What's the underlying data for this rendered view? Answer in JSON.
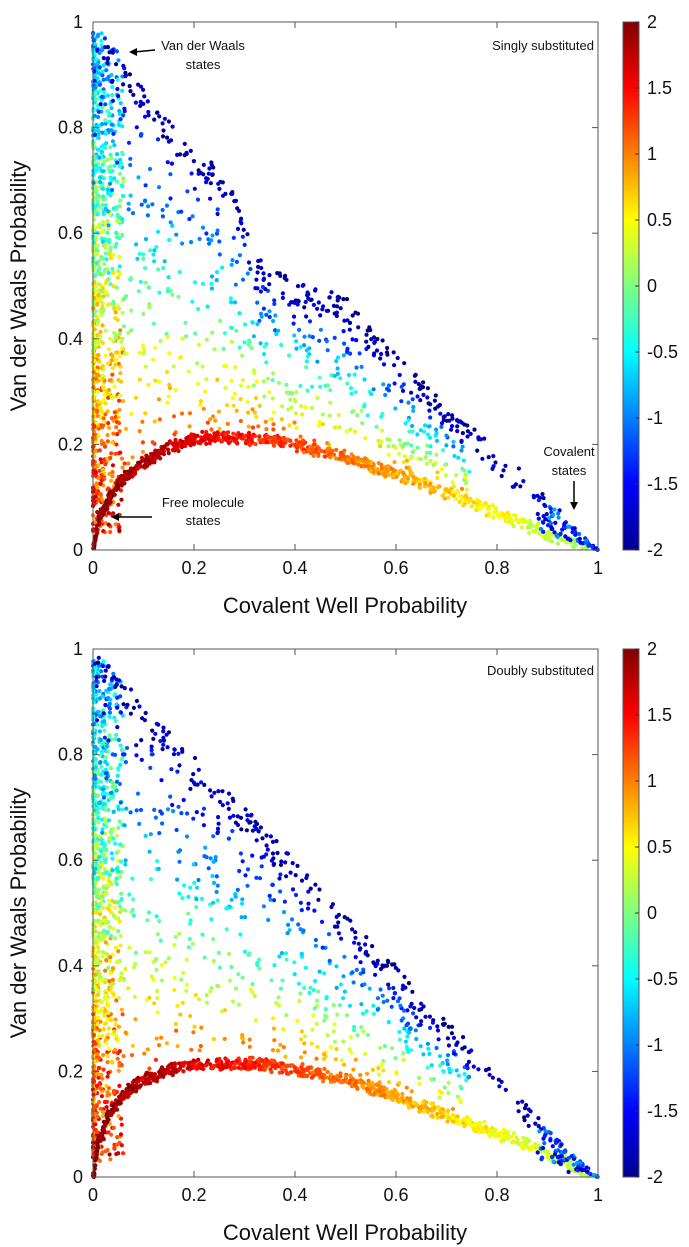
{
  "chart_data": [
    {
      "type": "scatter",
      "title": "",
      "panel_label": "Singly substituted",
      "xlabel": "Covalent Well Probability",
      "ylabel": "Van der Waals Probability",
      "xlim": [
        0,
        1
      ],
      "ylim": [
        0,
        1
      ],
      "xticks": [
        0,
        0.2,
        0.4,
        0.6,
        0.8,
        1
      ],
      "xtick_labels": [
        "0",
        "0.2",
        "0.4",
        "0.6",
        "0.8",
        "1"
      ],
      "yticks": [
        0,
        0.2,
        0.4,
        0.6,
        0.8,
        1
      ],
      "ytick_labels": [
        "0",
        "0.2",
        "0.4",
        "0.6",
        "0.8",
        "1"
      ],
      "grid": false,
      "colormap": "jet",
      "colorbar": {
        "range": [
          -2,
          2
        ],
        "ticks": [
          2,
          1.5,
          1,
          0.5,
          0,
          -0.5,
          -1,
          -1.5,
          -2
        ],
        "tick_labels": [
          "2",
          "1.5",
          "1",
          "0.5",
          "0",
          "-0.5",
          "-1",
          "-1.5",
          "-2"
        ]
      },
      "features": {
        "ridge_curve": [
          [
            0,
            0
          ],
          [
            0.01,
            0.06
          ],
          [
            0.03,
            0.1
          ],
          [
            0.06,
            0.14
          ],
          [
            0.1,
            0.17
          ],
          [
            0.15,
            0.2
          ],
          [
            0.2,
            0.215
          ],
          [
            0.26,
            0.22
          ],
          [
            0.33,
            0.215
          ],
          [
            0.4,
            0.205
          ],
          [
            0.5,
            0.18
          ],
          [
            0.6,
            0.15
          ],
          [
            0.7,
            0.115
          ],
          [
            0.8,
            0.075
          ],
          [
            0.9,
            0.035
          ],
          [
            1,
            0
          ]
        ],
        "upper_boundary_points": [
          [
            0,
            1
          ],
          [
            0.02,
            0.98
          ],
          [
            0.05,
            0.95
          ],
          [
            0.08,
            0.9
          ],
          [
            0.12,
            0.85
          ],
          [
            0.16,
            0.8
          ],
          [
            0.2,
            0.76
          ],
          [
            0.27,
            0.72
          ],
          [
            0.33,
            0.55
          ],
          [
            0.38,
            0.52
          ],
          [
            0.43,
            0.5
          ],
          [
            0.49,
            0.49
          ],
          [
            0.6,
            0.37
          ],
          [
            0.63,
            0.34
          ],
          [
            0.73,
            0.25
          ],
          [
            0.8,
            0.19
          ],
          [
            0.84,
            0.16
          ],
          [
            0.9,
            0.1
          ]
        ],
        "series_color_trend": [
          {
            "region": "ridge curve near origin",
            "value": 2
          },
          {
            "region": "ridge curve x 0.3-0.55",
            "value": 1.2
          },
          {
            "region": "ridge curve x 0.6-0.8",
            "value": 0.5
          },
          {
            "region": "near y axis, y 0.2-0.6",
            "value": 0.7
          },
          {
            "region": "near y axis, y 0.7-1",
            "value": -0.3
          },
          {
            "region": "upper boundary",
            "value": -1.8
          },
          {
            "region": "covalent corner",
            "value": -1
          }
        ]
      },
      "annotations": [
        {
          "text_lines": [
            "Van der Waals",
            "states"
          ],
          "points_to": [
            0.06,
            0.97
          ],
          "text_at": [
            0.22,
            0.95
          ]
        },
        {
          "text_lines": [
            "Free molecule",
            "states"
          ],
          "points_to": [
            0.035,
            0.06
          ],
          "text_at": [
            0.22,
            0.07
          ]
        },
        {
          "text_lines": [
            "Covalent",
            "states"
          ],
          "points_to": [
            0.955,
            0.065
          ],
          "text_at": [
            0.955,
            0.17
          ]
        }
      ]
    },
    {
      "type": "scatter",
      "title": "",
      "panel_label": "Doubly substituted",
      "xlabel": "Covalent Well Probability",
      "ylabel": "Van der Waals Probability",
      "xlim": [
        0,
        1
      ],
      "ylim": [
        0,
        1
      ],
      "xticks": [
        0,
        0.2,
        0.4,
        0.6,
        0.8,
        1
      ],
      "xtick_labels": [
        "0",
        "0.2",
        "0.4",
        "0.6",
        "0.8",
        "1"
      ],
      "yticks": [
        0,
        0.2,
        0.4,
        0.6,
        0.8,
        1
      ],
      "ytick_labels": [
        "0",
        "0.2",
        "0.4",
        "0.6",
        "0.8",
        "1"
      ],
      "grid": false,
      "colormap": "jet",
      "colorbar": {
        "range": [
          -2,
          2
        ],
        "ticks": [
          2,
          1.5,
          1,
          0.5,
          0,
          -0.5,
          -1,
          -1.5,
          -2
        ],
        "tick_labels": [
          "2",
          "1.5",
          "1",
          "0.5",
          "0",
          "-0.5",
          "-1",
          "-1.5",
          "-2"
        ]
      },
      "features": {
        "ridge_curve": [
          [
            0,
            0
          ],
          [
            0.01,
            0.07
          ],
          [
            0.03,
            0.12
          ],
          [
            0.06,
            0.16
          ],
          [
            0.1,
            0.19
          ],
          [
            0.16,
            0.21
          ],
          [
            0.22,
            0.218
          ],
          [
            0.3,
            0.22
          ],
          [
            0.36,
            0.215
          ],
          [
            0.45,
            0.2
          ],
          [
            0.55,
            0.175
          ],
          [
            0.65,
            0.14
          ],
          [
            0.75,
            0.105
          ],
          [
            0.85,
            0.07
          ],
          [
            0.93,
            0.035
          ],
          [
            1,
            0
          ]
        ],
        "upper_boundary_points": [
          [
            0,
            1
          ],
          [
            0.03,
            0.97
          ],
          [
            0.07,
            0.93
          ],
          [
            0.12,
            0.87
          ],
          [
            0.17,
            0.83
          ],
          [
            0.22,
            0.78
          ],
          [
            0.28,
            0.72
          ],
          [
            0.33,
            0.67
          ],
          [
            0.38,
            0.62
          ],
          [
            0.42,
            0.59
          ],
          [
            0.48,
            0.55
          ],
          [
            0.55,
            0.45
          ],
          [
            0.6,
            0.4
          ],
          [
            0.66,
            0.33
          ],
          [
            0.72,
            0.28
          ],
          [
            0.8,
            0.21
          ],
          [
            0.85,
            0.15
          ],
          [
            0.9,
            0.1
          ],
          [
            0.95,
            0.05
          ]
        ],
        "series_color_trend": [
          {
            "region": "ridge curve near origin",
            "value": 1.9
          },
          {
            "region": "ridge curve x 0.25-0.5",
            "value": 1.2
          },
          {
            "region": "ridge curve x 0.6-0.85",
            "value": 0.5
          },
          {
            "region": "near y axis, y 0.2-0.6",
            "value": 0.7
          },
          {
            "region": "near y axis, y 0.7-1",
            "value": -0.3
          },
          {
            "region": "upper boundary",
            "value": -1.8
          },
          {
            "region": "covalent corner",
            "value": -0.5
          }
        ]
      },
      "annotations": []
    }
  ]
}
